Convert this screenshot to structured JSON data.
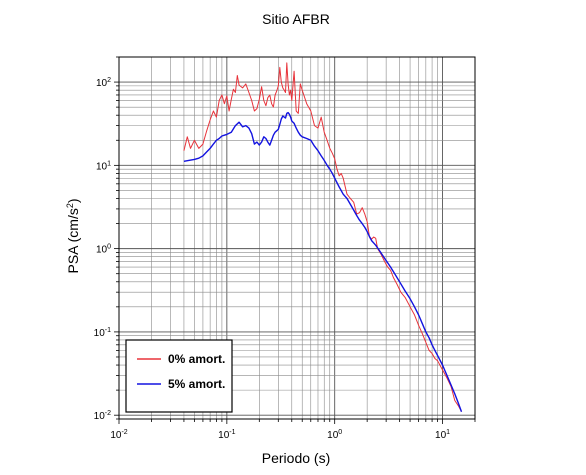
{
  "chart_data": {
    "type": "line",
    "title": "Sitio AFBR",
    "xlabel": "Periodo (s)",
    "ylabel_base": "PSA (cm/s",
    "ylabel_sup": "2",
    "ylabel_end": ")",
    "x_scale": "log",
    "y_scale": "log",
    "xlim": [
      0.01,
      20
    ],
    "ylim": [
      0.009,
      200
    ],
    "grid": true,
    "legend_position": "bottom-left",
    "x_ticks": [
      {
        "value": 0.01,
        "base": "10",
        "exp": "-2"
      },
      {
        "value": 0.1,
        "base": "10",
        "exp": "-1"
      },
      {
        "value": 1,
        "base": "10",
        "exp": "0"
      },
      {
        "value": 10,
        "base": "10",
        "exp": "1"
      }
    ],
    "y_ticks": [
      {
        "value": 0.01,
        "base": "10",
        "exp": "-2"
      },
      {
        "value": 0.1,
        "base": "10",
        "exp": "-1"
      },
      {
        "value": 1,
        "base": "10",
        "exp": "0"
      },
      {
        "value": 10,
        "base": "10",
        "exp": "1"
      },
      {
        "value": 100,
        "base": "10",
        "exp": "2"
      }
    ],
    "series": [
      {
        "name": "0% amort.",
        "color": "#e8333a",
        "points": [
          [
            0.04,
            15
          ],
          [
            0.043,
            22
          ],
          [
            0.046,
            16
          ],
          [
            0.05,
            20
          ],
          [
            0.055,
            16
          ],
          [
            0.06,
            18
          ],
          [
            0.065,
            26
          ],
          [
            0.07,
            35
          ],
          [
            0.075,
            45
          ],
          [
            0.08,
            38
          ],
          [
            0.085,
            60
          ],
          [
            0.09,
            70
          ],
          [
            0.095,
            55
          ],
          [
            0.1,
            68
          ],
          [
            0.105,
            45
          ],
          [
            0.11,
            62
          ],
          [
            0.115,
            82
          ],
          [
            0.12,
            75
          ],
          [
            0.125,
            120
          ],
          [
            0.13,
            92
          ],
          [
            0.14,
            85
          ],
          [
            0.15,
            95
          ],
          [
            0.16,
            75
          ],
          [
            0.17,
            60
          ],
          [
            0.18,
            45
          ],
          [
            0.19,
            48
          ],
          [
            0.2,
            62
          ],
          [
            0.21,
            88
          ],
          [
            0.22,
            60
          ],
          [
            0.23,
            52
          ],
          [
            0.24,
            65
          ],
          [
            0.25,
            70
          ],
          [
            0.26,
            55
          ],
          [
            0.27,
            50
          ],
          [
            0.28,
            70
          ],
          [
            0.29,
            78
          ],
          [
            0.3,
            90
          ],
          [
            0.31,
            150
          ],
          [
            0.32,
            100
          ],
          [
            0.33,
            85
          ],
          [
            0.34,
            80
          ],
          [
            0.35,
            75
          ],
          [
            0.36,
            170
          ],
          [
            0.37,
            95
          ],
          [
            0.38,
            70
          ],
          [
            0.39,
            80
          ],
          [
            0.4,
            60
          ],
          [
            0.42,
            135
          ],
          [
            0.44,
            45
          ],
          [
            0.46,
            42
          ],
          [
            0.48,
            95
          ],
          [
            0.5,
            80
          ],
          [
            0.55,
            55
          ],
          [
            0.6,
            45
          ],
          [
            0.65,
            30
          ],
          [
            0.7,
            28
          ],
          [
            0.75,
            38
          ],
          [
            0.8,
            25
          ],
          [
            0.85,
            20
          ],
          [
            0.9,
            16
          ],
          [
            0.95,
            14
          ],
          [
            1.0,
            12
          ],
          [
            1.05,
            9
          ],
          [
            1.1,
            7.5
          ],
          [
            1.15,
            8
          ],
          [
            1.2,
            7
          ],
          [
            1.3,
            4.5
          ],
          [
            1.4,
            4.0
          ],
          [
            1.5,
            3.6
          ],
          [
            1.6,
            2.6
          ],
          [
            1.7,
            2.7
          ],
          [
            1.8,
            3.1
          ],
          [
            1.9,
            2.6
          ],
          [
            2.0,
            2.1
          ],
          [
            2.1,
            1.4
          ],
          [
            2.2,
            1.3
          ],
          [
            2.3,
            1.38
          ],
          [
            2.4,
            1.33
          ],
          [
            2.5,
            1.0
          ],
          [
            2.7,
            0.85
          ],
          [
            2.9,
            0.7
          ],
          [
            3.1,
            0.6
          ],
          [
            3.3,
            0.55
          ],
          [
            3.5,
            0.45
          ],
          [
            3.8,
            0.37
          ],
          [
            4.1,
            0.3
          ],
          [
            4.5,
            0.26
          ],
          [
            5.0,
            0.2
          ],
          [
            5.5,
            0.16
          ],
          [
            6.0,
            0.12
          ],
          [
            6.5,
            0.095
          ],
          [
            7.0,
            0.075
          ],
          [
            7.5,
            0.06
          ],
          [
            8.0,
            0.055
          ],
          [
            8.5,
            0.048
          ],
          [
            9.0,
            0.045
          ],
          [
            10.0,
            0.035
          ],
          [
            11.0,
            0.028
          ],
          [
            12.0,
            0.022
          ],
          [
            13.0,
            0.015
          ],
          [
            14.0,
            0.013
          ],
          [
            15.0,
            0.011
          ]
        ]
      },
      {
        "name": "5% amort.",
        "color": "#1313e0",
        "points": [
          [
            0.04,
            11.2
          ],
          [
            0.045,
            11.5
          ],
          [
            0.05,
            11.8
          ],
          [
            0.055,
            12.2
          ],
          [
            0.06,
            13
          ],
          [
            0.065,
            14.5
          ],
          [
            0.07,
            16
          ],
          [
            0.075,
            18
          ],
          [
            0.08,
            20
          ],
          [
            0.085,
            21
          ],
          [
            0.09,
            22.5
          ],
          [
            0.095,
            23
          ],
          [
            0.1,
            23.5
          ],
          [
            0.11,
            25
          ],
          [
            0.12,
            30
          ],
          [
            0.13,
            33
          ],
          [
            0.14,
            29
          ],
          [
            0.15,
            30
          ],
          [
            0.16,
            28
          ],
          [
            0.17,
            24
          ],
          [
            0.18,
            18
          ],
          [
            0.19,
            19
          ],
          [
            0.2,
            17.5
          ],
          [
            0.21,
            19
          ],
          [
            0.22,
            22
          ],
          [
            0.23,
            21
          ],
          [
            0.24,
            19
          ],
          [
            0.25,
            17.5
          ],
          [
            0.26,
            20
          ],
          [
            0.27,
            23
          ],
          [
            0.28,
            25
          ],
          [
            0.29,
            26
          ],
          [
            0.3,
            27
          ],
          [
            0.31,
            31
          ],
          [
            0.32,
            36
          ],
          [
            0.33,
            39
          ],
          [
            0.34,
            38
          ],
          [
            0.35,
            37
          ],
          [
            0.36,
            42
          ],
          [
            0.37,
            43
          ],
          [
            0.38,
            41
          ],
          [
            0.39,
            38
          ],
          [
            0.4,
            34
          ],
          [
            0.42,
            32
          ],
          [
            0.44,
            28
          ],
          [
            0.46,
            25
          ],
          [
            0.48,
            23
          ],
          [
            0.5,
            22
          ],
          [
            0.55,
            21
          ],
          [
            0.6,
            20
          ],
          [
            0.65,
            17
          ],
          [
            0.7,
            15
          ],
          [
            0.75,
            13
          ],
          [
            0.8,
            11.5
          ],
          [
            0.85,
            10
          ],
          [
            0.9,
            9
          ],
          [
            0.95,
            8
          ],
          [
            1.0,
            7
          ],
          [
            1.1,
            5.5
          ],
          [
            1.2,
            4.5
          ],
          [
            1.3,
            4.0
          ],
          [
            1.4,
            3.4
          ],
          [
            1.5,
            2.9
          ],
          [
            1.6,
            2.5
          ],
          [
            1.7,
            2.2
          ],
          [
            1.8,
            2.0
          ],
          [
            1.9,
            1.8
          ],
          [
            2.0,
            1.6
          ],
          [
            2.1,
            1.4
          ],
          [
            2.2,
            1.25
          ],
          [
            2.4,
            1.1
          ],
          [
            2.6,
            0.95
          ],
          [
            2.8,
            0.82
          ],
          [
            3.0,
            0.72
          ],
          [
            3.3,
            0.6
          ],
          [
            3.6,
            0.5
          ],
          [
            4.0,
            0.4
          ],
          [
            4.5,
            0.31
          ],
          [
            5.0,
            0.25
          ],
          [
            5.5,
            0.2
          ],
          [
            6.0,
            0.16
          ],
          [
            6.5,
            0.125
          ],
          [
            7.0,
            0.1
          ],
          [
            7.5,
            0.085
          ],
          [
            8.0,
            0.07
          ],
          [
            8.5,
            0.06
          ],
          [
            9.0,
            0.052
          ],
          [
            10.0,
            0.04
          ],
          [
            11.0,
            0.03
          ],
          [
            12.0,
            0.023
          ],
          [
            13.0,
            0.018
          ],
          [
            14.0,
            0.014
          ],
          [
            15.0,
            0.011
          ]
        ]
      }
    ]
  }
}
